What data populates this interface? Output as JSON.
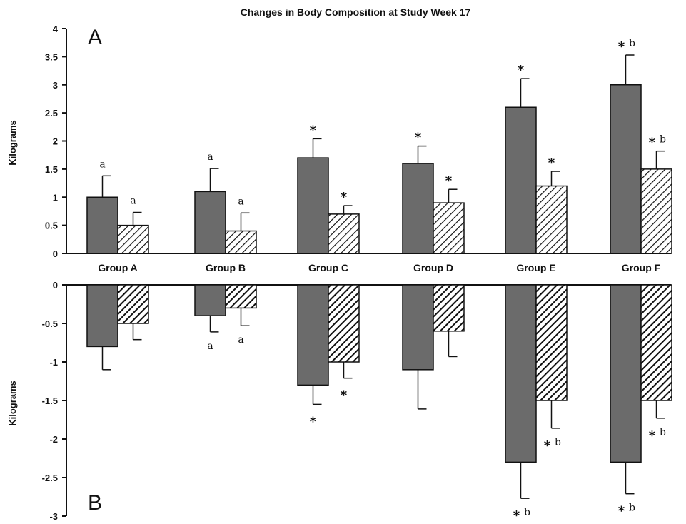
{
  "chart_data": [
    {
      "type": "bar",
      "panel": "A",
      "title": "Changes in Body Composition at Study Week 17",
      "ylabel": "Kilograms",
      "ylim": [
        0,
        4
      ],
      "yticks": [
        "0",
        "0.5",
        "1",
        "1.5",
        "2",
        "2.5",
        "3",
        "3.5",
        "4"
      ],
      "categories": [
        "Group A",
        "Group B",
        "Group C",
        "Group D",
        "Group E",
        "Group F"
      ],
      "series": [
        {
          "style": "solid",
          "color": "#6b6b6b",
          "values": [
            1.0,
            1.1,
            1.7,
            1.6,
            2.6,
            3.0
          ],
          "errors": [
            0.38,
            0.41,
            0.34,
            0.31,
            0.51,
            0.53
          ],
          "annotations": [
            {
              "sym": "",
              "let": "a"
            },
            {
              "sym": "",
              "let": "a"
            },
            {
              "sym": "*",
              "let": ""
            },
            {
              "sym": "*",
              "let": ""
            },
            {
              "sym": "*",
              "let": ""
            },
            {
              "sym": "*",
              "let": "b"
            }
          ]
        },
        {
          "style": "hatched",
          "color": "#ffffff",
          "values": [
            0.5,
            0.4,
            0.7,
            0.9,
            1.2,
            1.5
          ],
          "errors": [
            0.23,
            0.32,
            0.15,
            0.24,
            0.26,
            0.32
          ],
          "annotations": [
            {
              "sym": "",
              "let": "a"
            },
            {
              "sym": "",
              "let": "a"
            },
            {
              "sym": "*",
              "let": ""
            },
            {
              "sym": "*",
              "let": ""
            },
            {
              "sym": "*",
              "let": ""
            },
            {
              "sym": "*",
              "let": "b"
            }
          ]
        }
      ]
    },
    {
      "type": "bar",
      "panel": "B",
      "ylabel": "Kilograms",
      "ylim": [
        -3,
        0
      ],
      "yticks": [
        "0",
        "-0.5",
        "-1",
        "-1.5",
        "-2",
        "-2.5",
        "-3"
      ],
      "categories": [
        "Group A",
        "Group B",
        "Group C",
        "Group D",
        "Group E",
        "Group F"
      ],
      "series": [
        {
          "style": "solid",
          "color": "#6b6b6b",
          "values": [
            -0.8,
            -0.4,
            -1.3,
            -1.1,
            -2.3,
            -2.3
          ],
          "errors": [
            0.3,
            0.21,
            0.25,
            0.51,
            0.47,
            0.41
          ],
          "annotations": [
            {
              "sym": "",
              "let": ""
            },
            {
              "sym": "",
              "let": "a"
            },
            {
              "sym": "*",
              "let": ""
            },
            {
              "sym": "",
              "let": ""
            },
            {
              "sym": "*",
              "let": "b"
            },
            {
              "sym": "*",
              "let": "b"
            }
          ]
        },
        {
          "style": "hatched-dark",
          "color": "#ffffff",
          "values": [
            -0.5,
            -0.3,
            -1.0,
            -0.6,
            -1.5,
            -1.5
          ],
          "errors": [
            0.21,
            0.23,
            0.21,
            0.33,
            0.36,
            0.23
          ],
          "annotations": [
            {
              "sym": "",
              "let": ""
            },
            {
              "sym": "",
              "let": "a"
            },
            {
              "sym": "*",
              "let": ""
            },
            {
              "sym": "",
              "let": ""
            },
            {
              "sym": "*",
              "let": "b"
            },
            {
              "sym": "*",
              "let": "b"
            }
          ]
        }
      ]
    }
  ]
}
